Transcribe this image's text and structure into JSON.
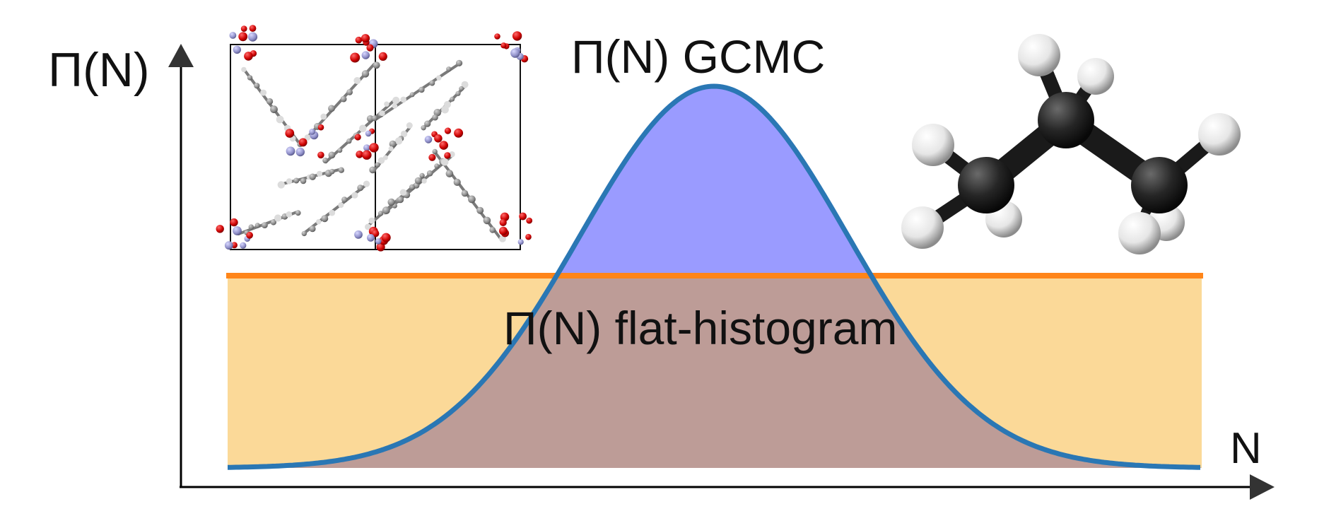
{
  "labels": {
    "y_axis": "Π(N)",
    "x_axis": "N",
    "gcmc_curve": "Π(N) GCMC",
    "flat_histogram": "Π(N) flat-histogram"
  },
  "icons": {
    "framework": "mof-crystal-structure-icon",
    "molecule": "propane-ball-and-stick-icon"
  },
  "colors": {
    "gcmc_line": "#2a77b4",
    "gcmc_fill": "#9a9bff",
    "flat_line": "#ff8519",
    "flat_fill": "#fbd998",
    "overlap_fill": "#bd9c97",
    "axis": "#000000",
    "oxygen": "#cc0000",
    "carbon": "#8a8a8a",
    "hydrogen": "#dcdcdc",
    "metal": "#8f8fc8",
    "molecule_carbon": "#1f1f1f",
    "molecule_hydrogen": "#f2f2f2"
  }
}
